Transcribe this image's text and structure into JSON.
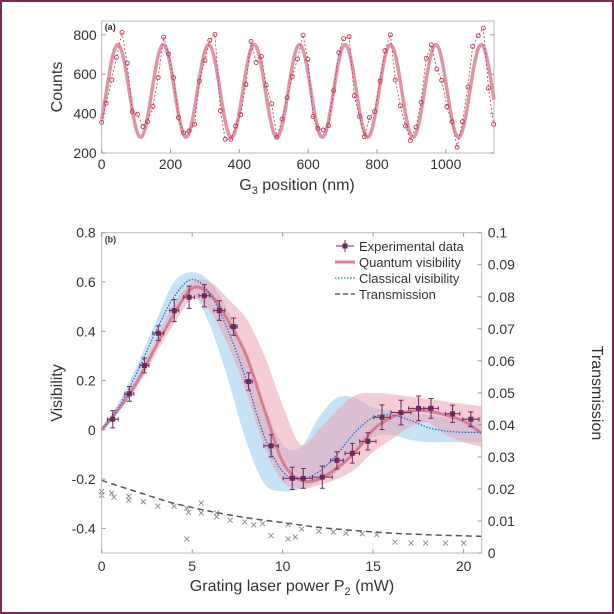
{
  "chart_data": [
    {
      "panel_label": "(a)",
      "type": "scatter",
      "xlabel": "G",
      "xlabel_sub": "3",
      "xlabel_rest": " position (nm)",
      "ylabel": "Counts",
      "xlim": [
        0,
        1140
      ],
      "ylim": [
        200,
        870
      ],
      "xticks": [
        0,
        200,
        400,
        600,
        800,
        1000
      ],
      "yticks": [
        200,
        400,
        600,
        800
      ],
      "colors": {
        "data": "#c0394f",
        "fit": "#dc8a9c"
      },
      "fit": {
        "mean": 515,
        "amplitude": 235,
        "period_nm": 132,
        "peak_nm": 47
      },
      "points": [
        [
          0,
          356
        ],
        [
          13,
          453
        ],
        [
          29,
          571
        ],
        [
          43,
          685
        ],
        [
          59,
          812
        ],
        [
          74,
          656
        ],
        [
          89,
          410
        ],
        [
          104,
          397
        ],
        [
          120,
          334
        ],
        [
          133,
          359
        ],
        [
          149,
          436
        ],
        [
          164,
          583
        ],
        [
          180,
          788
        ],
        [
          194,
          703
        ],
        [
          209,
          583
        ],
        [
          223,
          380
        ],
        [
          238,
          303
        ],
        [
          254,
          312
        ],
        [
          270,
          346
        ],
        [
          284,
          566
        ],
        [
          300,
          669
        ],
        [
          314,
          771
        ],
        [
          329,
          802
        ],
        [
          345,
          415
        ],
        [
          359,
          270
        ],
        [
          375,
          270
        ],
        [
          389,
          337
        ],
        [
          404,
          395
        ],
        [
          419,
          547
        ],
        [
          434,
          766
        ],
        [
          449,
          659
        ],
        [
          464,
          690
        ],
        [
          478,
          544
        ],
        [
          494,
          449
        ],
        [
          509,
          280
        ],
        [
          524,
          373
        ],
        [
          539,
          481
        ],
        [
          554,
          588
        ],
        [
          569,
          676
        ],
        [
          585,
          798
        ],
        [
          599,
          676
        ],
        [
          614,
          385
        ],
        [
          628,
          325
        ],
        [
          644,
          317
        ],
        [
          659,
          339
        ],
        [
          674,
          517
        ],
        [
          689,
          710
        ],
        [
          703,
          780
        ],
        [
          719,
          790
        ],
        [
          734,
          490
        ],
        [
          749,
          385
        ],
        [
          763,
          283
        ],
        [
          778,
          380
        ],
        [
          793,
          410
        ],
        [
          809,
          566
        ],
        [
          823,
          719
        ],
        [
          839,
          800
        ],
        [
          853,
          571
        ],
        [
          868,
          439
        ],
        [
          883,
          337
        ],
        [
          897,
          263
        ],
        [
          913,
          331
        ],
        [
          928,
          458
        ],
        [
          943,
          681
        ],
        [
          958,
          749
        ],
        [
          974,
          625
        ],
        [
          988,
          568
        ],
        [
          1003,
          436
        ],
        [
          1018,
          359
        ],
        [
          1033,
          229
        ],
        [
          1048,
          359
        ],
        [
          1064,
          534
        ],
        [
          1078,
          741
        ],
        [
          1094,
          795
        ],
        [
          1109,
          834
        ],
        [
          1124,
          529
        ],
        [
          1139,
          346
        ]
      ]
    },
    {
      "panel_label": "(b)",
      "type": "line",
      "xlabel": "Grating laser power P",
      "xlabel_sub": "2",
      "xlabel_rest": " (mW)",
      "ylabel": "Visibility",
      "y2label": "Transmission",
      "xlim": [
        0,
        21
      ],
      "ylim": [
        -0.5,
        0.8
      ],
      "y2lim": [
        0,
        0.1
      ],
      "xticks": [
        0,
        5,
        10,
        15,
        20
      ],
      "yticks": [
        "-0.4",
        "-0.2",
        "0",
        "0.2",
        "0.4",
        "0.6",
        "0.8"
      ],
      "y2ticks": [
        "0",
        "0.01",
        "0.02",
        "0.03",
        "0.04",
        "0.05",
        "0.06",
        "0.07",
        "0.08",
        "0.09",
        "0.1"
      ],
      "legend": {
        "position": "top-right",
        "entries": [
          "Experimental data",
          "Quantum visibility",
          "Classical visibility",
          "Transmission"
        ]
      },
      "colors": {
        "data": "#6b2a5a",
        "quantum": "#d77f92",
        "quantum_band": "#eaa3b3",
        "classical": "#2a6fc0",
        "classical_band": "#a9d3ee",
        "transmission": "#555555"
      },
      "experimental": [
        {
          "x": 0.61,
          "y": 0.043,
          "xerr": 0.3,
          "yerr": 0.035
        },
        {
          "x": 1.53,
          "y": 0.146,
          "xerr": 0.25,
          "yerr": 0.03
        },
        {
          "x": 2.36,
          "y": 0.261,
          "xerr": 0.25,
          "yerr": 0.03
        },
        {
          "x": 3.13,
          "y": 0.392,
          "xerr": 0.3,
          "yerr": 0.03
        },
        {
          "x": 4.01,
          "y": 0.484,
          "xerr": 0.25,
          "yerr": 0.045
        },
        {
          "x": 4.83,
          "y": 0.538,
          "xerr": 0.3,
          "yerr": 0.045
        },
        {
          "x": 5.67,
          "y": 0.544,
          "xerr": 0.3,
          "yerr": 0.045
        },
        {
          "x": 6.5,
          "y": 0.484,
          "xerr": 0.3,
          "yerr": 0.04
        },
        {
          "x": 7.29,
          "y": 0.419,
          "xerr": 0.2,
          "yerr": 0.035
        },
        {
          "x": 8.12,
          "y": 0.196,
          "xerr": 0.2,
          "yerr": 0.035
        },
        {
          "x": 9.36,
          "y": -0.065,
          "xerr": 0.4,
          "yerr": 0.045
        },
        {
          "x": 10.53,
          "y": -0.197,
          "xerr": 0.5,
          "yerr": 0.045
        },
        {
          "x": 11.14,
          "y": -0.197,
          "xerr": 0.5,
          "yerr": 0.04
        },
        {
          "x": 12.19,
          "y": -0.192,
          "xerr": 0.55,
          "yerr": 0.045
        },
        {
          "x": 13.0,
          "y": -0.124,
          "xerr": 0.35,
          "yerr": 0.035
        },
        {
          "x": 13.85,
          "y": -0.095,
          "xerr": 0.4,
          "yerr": 0.04
        },
        {
          "x": 14.71,
          "y": -0.047,
          "xerr": 0.45,
          "yerr": 0.035
        },
        {
          "x": 15.49,
          "y": 0.051,
          "xerr": 0.45,
          "yerr": 0.05
        },
        {
          "x": 16.54,
          "y": 0.07,
          "xerr": 0.55,
          "yerr": 0.05
        },
        {
          "x": 17.51,
          "y": 0.087,
          "xerr": 0.55,
          "yerr": 0.05
        },
        {
          "x": 18.2,
          "y": 0.087,
          "xerr": 0.4,
          "yerr": 0.04
        },
        {
          "x": 19.39,
          "y": 0.065,
          "xerr": 0.4,
          "yerr": 0.035
        },
        {
          "x": 20.4,
          "y": 0.043,
          "xerr": 0.45,
          "yerr": 0.03
        }
      ],
      "grid_x": [
        0,
        1,
        2,
        3,
        4,
        5,
        6,
        7,
        8,
        9,
        10,
        11,
        12,
        13,
        14,
        15,
        16,
        17,
        18,
        19,
        20,
        21
      ],
      "quantum": [
        0,
        0.09,
        0.2,
        0.34,
        0.47,
        0.575,
        0.55,
        0.44,
        0.3,
        0.08,
        -0.13,
        -0.205,
        -0.2,
        -0.155,
        -0.09,
        0,
        0.05,
        0.075,
        0.077,
        0.06,
        0.035,
        -0.014
      ],
      "quantum_upper": [
        0.01,
        0.1,
        0.22,
        0.37,
        0.51,
        0.6,
        0.6,
        0.53,
        0.45,
        0.3,
        0.1,
        -0.06,
        0.0,
        0.08,
        0.14,
        0.15,
        0.145,
        0.135,
        0.125,
        0.115,
        0.105,
        0.095
      ],
      "quantum_lower": [
        -0.01,
        0.08,
        0.18,
        0.31,
        0.43,
        0.53,
        0.48,
        0.34,
        0.15,
        -0.07,
        -0.21,
        -0.24,
        -0.225,
        -0.2,
        -0.16,
        -0.09,
        -0.04,
        0.01,
        0.03,
        -0.02,
        -0.05,
        -0.07
      ],
      "classical": [
        0,
        0.1,
        0.24,
        0.4,
        0.54,
        0.61,
        0.55,
        0.4,
        0.2,
        -0.03,
        -0.17,
        -0.2,
        -0.17,
        -0.1,
        -0.01,
        0.05,
        0.06,
        0.04,
        0.01,
        -0.005,
        -0.01,
        -0.01
      ],
      "classical_upper": [
        0.01,
        0.12,
        0.27,
        0.44,
        0.6,
        0.64,
        0.6,
        0.48,
        0.3,
        0.1,
        -0.06,
        -0.07,
        0.05,
        0.13,
        0.13,
        0.09,
        0.08,
        0.07,
        0.06,
        0.05,
        0.05,
        0.05
      ],
      "classical_lower": [
        -0.01,
        0.08,
        0.21,
        0.36,
        0.48,
        0.55,
        0.42,
        0.2,
        -0.05,
        -0.22,
        -0.25,
        -0.24,
        -0.21,
        -0.17,
        -0.1,
        -0.03,
        -0.02,
        -0.04,
        -0.05,
        -0.05,
        -0.05,
        -0.05
      ],
      "transmission_fit": [
        [
          0,
          0.0227
        ],
        [
          1,
          0.0208
        ],
        [
          2,
          0.019
        ],
        [
          3,
          0.0172
        ],
        [
          4,
          0.0155
        ],
        [
          6,
          0.013
        ],
        [
          8,
          0.011
        ],
        [
          10,
          0.0095
        ],
        [
          12,
          0.008
        ],
        [
          14,
          0.007
        ],
        [
          16,
          0.0062
        ],
        [
          18,
          0.0057
        ],
        [
          21,
          0.0052
        ]
      ],
      "transmission_points": [
        [
          0,
          0.0192
        ],
        [
          0,
          0.018
        ],
        [
          0.55,
          0.0187
        ],
        [
          0.68,
          0.0174
        ],
        [
          1.5,
          0.0177
        ],
        [
          1.5,
          0.0165
        ],
        [
          2.3,
          0.016
        ],
        [
          3.1,
          0.0146
        ],
        [
          4.0,
          0.0146
        ],
        [
          4.7,
          0.014
        ],
        [
          4.7,
          0.0044
        ],
        [
          4.8,
          0.0127
        ],
        [
          5.5,
          0.0156
        ],
        [
          5.5,
          0.0125
        ],
        [
          6.35,
          0.0125
        ],
        [
          6.35,
          0.0113
        ],
        [
          7.1,
          0.0102
        ],
        [
          7.9,
          0.0097
        ],
        [
          8.4,
          0.0088
        ],
        [
          8.9,
          0.0092
        ],
        [
          9.36,
          0.0054
        ],
        [
          10.3,
          0.0088
        ],
        [
          10.3,
          0.0044
        ],
        [
          10.7,
          0.005
        ],
        [
          11.05,
          0.0075
        ],
        [
          12,
          0.0068
        ],
        [
          12.8,
          0.0065
        ],
        [
          13.5,
          0.0062
        ],
        [
          14.4,
          0.006
        ],
        [
          15.2,
          0.0057
        ],
        [
          16.2,
          0.0034
        ],
        [
          17.1,
          0.0031
        ],
        [
          17.9,
          0.0031
        ],
        [
          19.0,
          0.0031
        ],
        [
          20,
          0.0031
        ]
      ]
    }
  ]
}
